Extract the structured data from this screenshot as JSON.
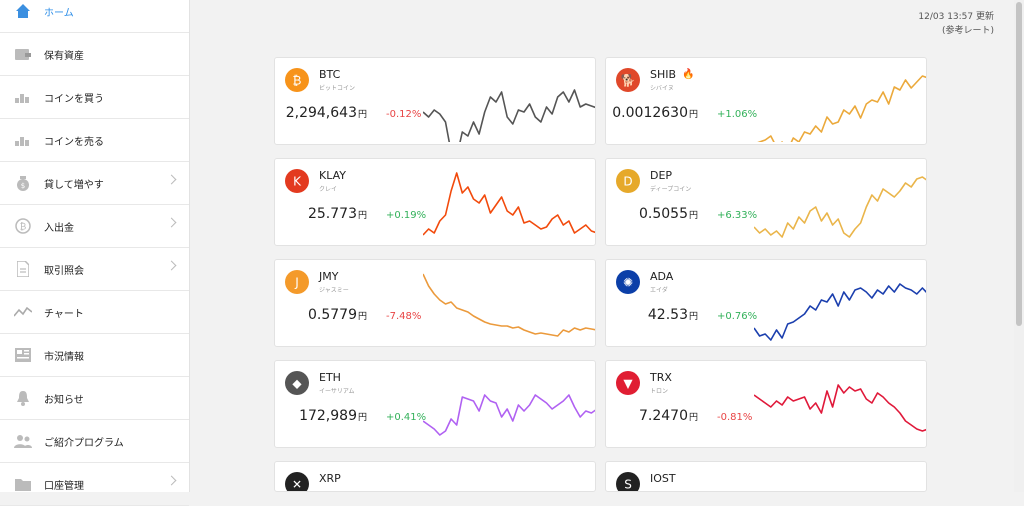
{
  "sidebar": {
    "items": [
      {
        "label": "ホーム",
        "icon": "home-icon",
        "active": true,
        "chevron": false
      },
      {
        "label": "保有資産",
        "icon": "wallet-icon",
        "active": false,
        "chevron": false
      },
      {
        "label": "コインを買う",
        "icon": "coin-stack-icon",
        "active": false,
        "chevron": false
      },
      {
        "label": "コインを売る",
        "icon": "coin-stack-icon",
        "active": false,
        "chevron": false
      },
      {
        "label": "貸して増やす",
        "icon": "money-bag-icon",
        "active": false,
        "chevron": true
      },
      {
        "label": "入出金",
        "icon": "bitcoin-circle-icon",
        "active": false,
        "chevron": true
      },
      {
        "label": "取引照会",
        "icon": "document-icon",
        "active": false,
        "chevron": true
      },
      {
        "label": "チャート",
        "icon": "line-chart-icon",
        "active": false,
        "chevron": false
      },
      {
        "label": "市況情報",
        "icon": "newspaper-icon",
        "active": false,
        "chevron": false
      },
      {
        "label": "お知らせ",
        "icon": "bell-icon",
        "active": false,
        "chevron": false
      },
      {
        "label": "ご紹介プログラム",
        "icon": "people-icon",
        "active": false,
        "chevron": false
      },
      {
        "label": "口座管理",
        "icon": "folder-icon",
        "active": false,
        "chevron": true
      }
    ]
  },
  "timestamp": {
    "time": "12/03 13:57 更新",
    "note": "(参考レート)"
  },
  "currency_unit": "円",
  "colors": {
    "accent": "#2f8fe8",
    "negative": "#e84545",
    "positive": "#33b15a"
  },
  "coins": [
    {
      "symbol": "BTC",
      "name": "ビットコイン",
      "price": "2,294,643",
      "change": "-0.12%",
      "direction": "neg",
      "line_color": "#555555",
      "logo_color": "#f7931a",
      "logo_glyph": "₿",
      "icon": "bitcoin-logo-icon",
      "badge": ""
    },
    {
      "symbol": "SHIB",
      "name": "シバイヌ",
      "price": "0.0012630",
      "change": "+1.06%",
      "direction": "pos",
      "line_color": "#eba93b",
      "logo_color": "#e0482a",
      "logo_glyph": "🐕",
      "icon": "shiba-logo-icon",
      "badge": "fire-icon"
    },
    {
      "symbol": "KLAY",
      "name": "クレイ",
      "price": "25.773",
      "change": "+0.19%",
      "direction": "pos",
      "line_color": "#f24a0c",
      "logo_color": "#e33a1f",
      "logo_glyph": "K",
      "icon": "klaytn-logo-icon",
      "badge": ""
    },
    {
      "symbol": "DEP",
      "name": "ディープコイン",
      "price": "0.5055",
      "change": "+6.33%",
      "direction": "pos",
      "line_color": "#eab54a",
      "logo_color": "#e6a92a",
      "logo_glyph": "D",
      "icon": "dep-logo-icon",
      "badge": ""
    },
    {
      "symbol": "JMY",
      "name": "ジャスミー",
      "price": "0.5779",
      "change": "-7.48%",
      "direction": "neg",
      "line_color": "#eb9a3c",
      "logo_color": "#f49a2a",
      "logo_glyph": "J",
      "icon": "jasmy-logo-icon",
      "badge": ""
    },
    {
      "symbol": "ADA",
      "name": "エイダ",
      "price": "42.53",
      "change": "+0.76%",
      "direction": "pos",
      "line_color": "#1b3fae",
      "logo_color": "#0c3fa8",
      "logo_glyph": "✺",
      "icon": "cardano-logo-icon",
      "badge": ""
    },
    {
      "symbol": "ETH",
      "name": "イーサリアム",
      "price": "172,989",
      "change": "+0.41%",
      "direction": "pos",
      "line_color": "#b061f2",
      "logo_color": "#555555",
      "logo_glyph": "◆",
      "icon": "ethereum-logo-icon",
      "badge": ""
    },
    {
      "symbol": "TRX",
      "name": "トロン",
      "price": "7.2470",
      "change": "-0.81%",
      "direction": "neg",
      "line_color": "#e0193a",
      "logo_color": "#e01e33",
      "logo_glyph": "▼",
      "icon": "tron-logo-icon",
      "badge": ""
    },
    {
      "symbol": "XRP",
      "name": "",
      "price": "",
      "change": "",
      "direction": "pos",
      "line_color": "#1e8fd8",
      "logo_color": "#222222",
      "logo_glyph": "✕",
      "icon": "xrp-logo-icon",
      "badge": ""
    },
    {
      "symbol": "IOST",
      "name": "",
      "price": "",
      "change": "",
      "direction": "pos",
      "line_color": "#222222",
      "logo_color": "#222222",
      "logo_glyph": "S",
      "icon": "iost-logo-icon",
      "badge": ""
    }
  ]
}
